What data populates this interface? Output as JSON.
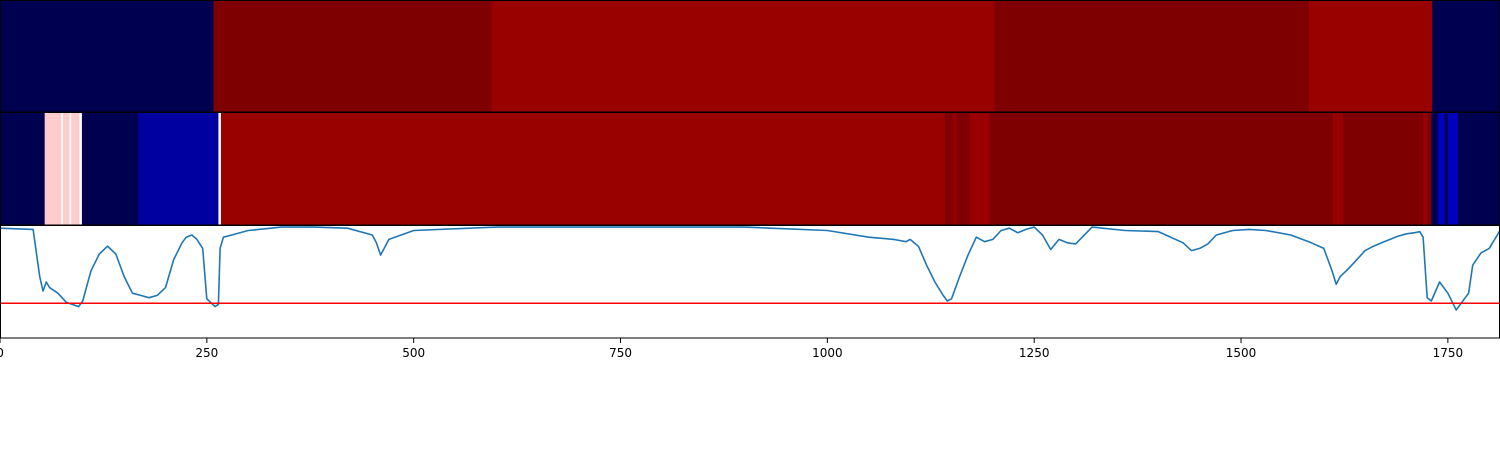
{
  "chart_data": [
    {
      "type": "heatmap",
      "row": "top-band",
      "segments": [
        {
          "start": 0,
          "end": 258,
          "color": "#000050"
        },
        {
          "start": 258,
          "end": 594,
          "color": "#7f0000"
        },
        {
          "start": 594,
          "end": 1202,
          "color": "#990000"
        },
        {
          "start": 1202,
          "end": 1582,
          "color": "#7f0000"
        },
        {
          "start": 1582,
          "end": 1731,
          "color": "#990000"
        },
        {
          "start": 1731,
          "end": 1813,
          "color": "#000050"
        }
      ]
    },
    {
      "type": "heatmap",
      "row": "middle-band",
      "segments": [
        {
          "start": 0,
          "end": 54,
          "color": "#000050"
        },
        {
          "start": 54,
          "end": 74,
          "color": "#ffcccc"
        },
        {
          "start": 74,
          "end": 76,
          "color": "#ffffff"
        },
        {
          "start": 76,
          "end": 84,
          "color": "#ffcccc"
        },
        {
          "start": 84,
          "end": 86,
          "color": "#ffffff"
        },
        {
          "start": 86,
          "end": 96,
          "color": "#ffcccc"
        },
        {
          "start": 96,
          "end": 99,
          "color": "#ffffff"
        },
        {
          "start": 99,
          "end": 167,
          "color": "#000050"
        },
        {
          "start": 167,
          "end": 264,
          "color": "#0000a0"
        },
        {
          "start": 264,
          "end": 267,
          "color": "#ffffff"
        },
        {
          "start": 267,
          "end": 1142,
          "color": "#990000"
        },
        {
          "start": 1142,
          "end": 1152,
          "color": "#7f0000"
        },
        {
          "start": 1152,
          "end": 1156,
          "color": "#990000"
        },
        {
          "start": 1156,
          "end": 1172,
          "color": "#7f0000"
        },
        {
          "start": 1172,
          "end": 1196,
          "color": "#990000"
        },
        {
          "start": 1196,
          "end": 1611,
          "color": "#7f0000"
        },
        {
          "start": 1611,
          "end": 1623,
          "color": "#990000"
        },
        {
          "start": 1623,
          "end": 1720,
          "color": "#7f0000"
        },
        {
          "start": 1720,
          "end": 1725,
          "color": "#990000"
        },
        {
          "start": 1725,
          "end": 1730,
          "color": "#7f0000"
        },
        {
          "start": 1730,
          "end": 1738,
          "color": "#000050"
        },
        {
          "start": 1738,
          "end": 1746,
          "color": "#0000c0"
        },
        {
          "start": 1746,
          "end": 1750,
          "color": "#000050"
        },
        {
          "start": 1750,
          "end": 1762,
          "color": "#0000c0"
        },
        {
          "start": 1762,
          "end": 1768,
          "color": "#000050"
        },
        {
          "start": 1768,
          "end": 1813,
          "color": "#000050"
        }
      ]
    },
    {
      "type": "line",
      "row": "bottom-panel",
      "xlim": [
        0,
        1813
      ],
      "ylim": [
        0,
        1
      ],
      "grid": false,
      "xticks": [
        0,
        250,
        500,
        750,
        1000,
        1250,
        1500,
        1750
      ],
      "series": [
        {
          "color": "#1f77b4",
          "x": [
            0,
            40,
            48,
            52,
            56,
            60,
            70,
            80,
            95,
            100,
            110,
            120,
            130,
            140,
            150,
            160,
            170,
            180,
            190,
            200,
            210,
            220,
            225,
            232,
            238,
            245,
            250,
            260,
            264,
            266,
            270,
            280,
            300,
            340,
            380,
            420,
            450,
            455,
            460,
            470,
            500,
            600,
            700,
            800,
            900,
            1000,
            1050,
            1080,
            1095,
            1100,
            1110,
            1120,
            1130,
            1140,
            1145,
            1150,
            1160,
            1170,
            1180,
            1190,
            1200,
            1210,
            1220,
            1230,
            1240,
            1250,
            1260,
            1270,
            1280,
            1290,
            1300,
            1320,
            1360,
            1400,
            1430,
            1440,
            1450,
            1460,
            1470,
            1490,
            1510,
            1530,
            1560,
            1585,
            1600,
            1610,
            1615,
            1620,
            1630,
            1640,
            1650,
            1660,
            1670,
            1680,
            1690,
            1700,
            1710,
            1716,
            1720,
            1725,
            1730,
            1740,
            1750,
            1760,
            1770,
            1775,
            1780,
            1790,
            1800,
            1813
          ],
          "y": [
            0.98,
            0.97,
            0.55,
            0.42,
            0.5,
            0.45,
            0.4,
            0.32,
            0.28,
            0.33,
            0.6,
            0.75,
            0.82,
            0.75,
            0.55,
            0.4,
            0.38,
            0.36,
            0.38,
            0.45,
            0.7,
            0.85,
            0.9,
            0.92,
            0.88,
            0.8,
            0.35,
            0.28,
            0.3,
            0.8,
            0.9,
            0.92,
            0.96,
            0.99,
            0.99,
            0.98,
            0.92,
            0.85,
            0.74,
            0.88,
            0.96,
            0.99,
            0.99,
            0.99,
            0.99,
            0.96,
            0.9,
            0.88,
            0.86,
            0.88,
            0.82,
            0.65,
            0.5,
            0.38,
            0.33,
            0.35,
            0.55,
            0.74,
            0.9,
            0.86,
            0.88,
            0.96,
            0.98,
            0.94,
            0.97,
            0.99,
            0.92,
            0.79,
            0.88,
            0.85,
            0.84,
            0.99,
            0.96,
            0.95,
            0.85,
            0.78,
            0.8,
            0.84,
            0.92,
            0.96,
            0.97,
            0.96,
            0.92,
            0.85,
            0.8,
            0.6,
            0.48,
            0.55,
            0.62,
            0.7,
            0.78,
            0.82,
            0.85,
            0.88,
            0.91,
            0.93,
            0.94,
            0.95,
            0.9,
            0.36,
            0.33,
            0.5,
            0.4,
            0.25,
            0.35,
            0.4,
            0.65,
            0.76,
            0.8,
            0.96
          ]
        },
        {
          "color": "#ff0000",
          "x": [
            0,
            1813
          ],
          "y": [
            0.31,
            0.31
          ]
        }
      ]
    }
  ]
}
